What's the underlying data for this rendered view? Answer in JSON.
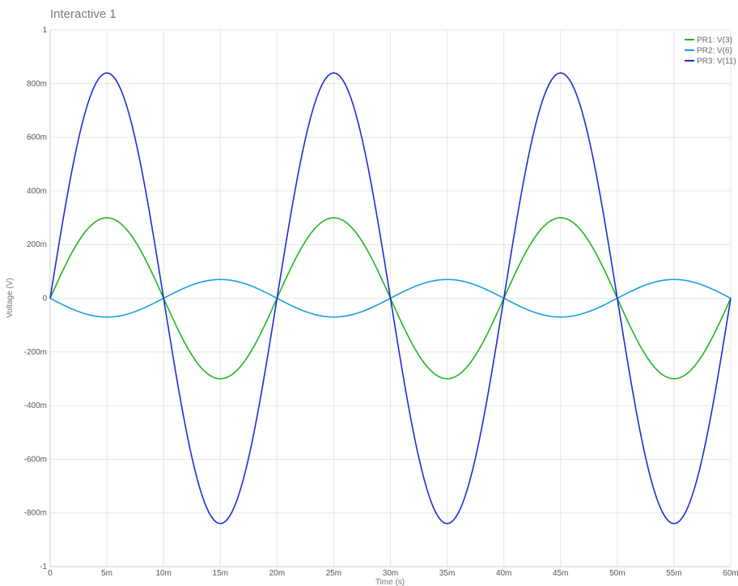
{
  "window": {
    "title": "Interactive 1"
  },
  "chart_data": {
    "type": "line",
    "title": "",
    "xlabel": "Time (s)",
    "ylabel": "Voltage (V)",
    "xlim": [
      0,
      0.06
    ],
    "ylim": [
      -1,
      1
    ],
    "grid": true,
    "legend_position": "top-right",
    "x_ticks": [
      {
        "value": 0,
        "label": "0"
      },
      {
        "value": 0.005,
        "label": "5m"
      },
      {
        "value": 0.01,
        "label": "10m"
      },
      {
        "value": 0.015,
        "label": "15m"
      },
      {
        "value": 0.02,
        "label": "20m"
      },
      {
        "value": 0.025,
        "label": "25m"
      },
      {
        "value": 0.03,
        "label": "30m"
      },
      {
        "value": 0.035,
        "label": "35m"
      },
      {
        "value": 0.04,
        "label": "40m"
      },
      {
        "value": 0.045,
        "label": "45m"
      },
      {
        "value": 0.05,
        "label": "50m"
      },
      {
        "value": 0.055,
        "label": "55m"
      },
      {
        "value": 0.06,
        "label": "60m"
      }
    ],
    "y_ticks": [
      {
        "value": 1,
        "label": "1"
      },
      {
        "value": 0.8,
        "label": "800m"
      },
      {
        "value": 0.6,
        "label": "600m"
      },
      {
        "value": 0.4,
        "label": "400m"
      },
      {
        "value": 0.2,
        "label": "200m"
      },
      {
        "value": 0,
        "label": "0"
      },
      {
        "value": -0.2,
        "label": "-200m"
      },
      {
        "value": -0.4,
        "label": "-400m"
      },
      {
        "value": -0.6,
        "label": "-600m"
      },
      {
        "value": -0.8,
        "label": "-800m"
      },
      {
        "value": -1,
        "label": "-1"
      }
    ],
    "x": [
      0,
      0.005,
      0.01,
      0.015,
      0.02,
      0.025,
      0.03,
      0.035,
      0.04,
      0.045,
      0.05,
      0.055,
      0.06
    ],
    "series": [
      {
        "name": "PR1: V(3)",
        "color": "#22b522",
        "values": [
          0,
          0.3,
          0,
          -0.3,
          0,
          0.3,
          0,
          -0.3,
          0,
          0.3,
          0,
          -0.3,
          0
        ]
      },
      {
        "name": "PR2: V(6)",
        "color": "#1a9fe0",
        "values": [
          0,
          -0.07,
          0,
          0.07,
          0,
          -0.07,
          0,
          0.07,
          0,
          -0.07,
          0,
          0.07,
          0
        ]
      },
      {
        "name": "PR3: V(11)",
        "color": "#1c2fd6",
        "values": [
          0,
          0.84,
          0,
          -0.84,
          0,
          0.84,
          0,
          -0.84,
          0,
          0.84,
          0,
          -0.84,
          0
        ]
      }
    ]
  }
}
